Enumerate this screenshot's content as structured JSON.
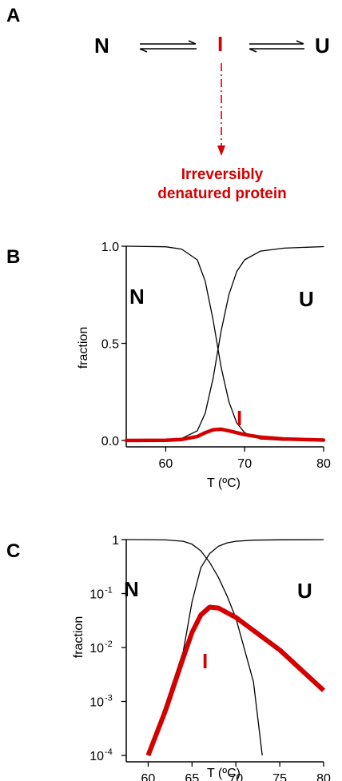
{
  "panels": {
    "A": {
      "letter": "A",
      "species_N": "N",
      "species_I": "I",
      "species_U": "U",
      "irreversible_line1": "Irreversibly",
      "irreversible_line2": "denatured protein",
      "colors": {
        "intermediate": "#d40000",
        "native_unfolded": "#000000"
      },
      "icons": [
        "equilibrium-arrows-icon",
        "dash-dot-arrow-icon"
      ]
    },
    "B": {
      "letter": "B",
      "label_N": "N",
      "label_U": "U",
      "label_I": "I",
      "ylabel": "fraction",
      "xlabel": "T (ºC)",
      "y_ticks": [
        "0.0",
        "0.5",
        "1.0"
      ],
      "x_ticks": [
        "60",
        "70",
        "80"
      ]
    },
    "C": {
      "letter": "C",
      "label_N": "N",
      "label_U": "U",
      "label_I": "I",
      "ylabel": "fraction",
      "xlabel": "T (ºC)",
      "y_tick_top": "1",
      "y_tick_base": "10",
      "y_tick_exps": [
        "-1",
        "-2",
        "-3",
        "-4"
      ],
      "x_ticks": [
        "60",
        "65",
        "70",
        "75",
        "80"
      ]
    }
  },
  "chart_data": [
    {
      "type": "line",
      "panel": "B",
      "xlim": [
        55,
        80
      ],
      "ylim": [
        0,
        1
      ],
      "log_y": false,
      "x": [
        55,
        60,
        62,
        64,
        65,
        66,
        67,
        68,
        69,
        70,
        72,
        75,
        80
      ],
      "series": [
        {
          "name": "N",
          "color": "#000000",
          "values": [
            1.0,
            0.997,
            0.985,
            0.93,
            0.82,
            0.62,
            0.38,
            0.2,
            0.09,
            0.04,
            0.008,
            0.001,
            0.0
          ]
        },
        {
          "name": "U",
          "color": "#000000",
          "values": [
            0.0,
            0.002,
            0.01,
            0.05,
            0.14,
            0.32,
            0.56,
            0.75,
            0.87,
            0.93,
            0.975,
            0.99,
            0.998
          ]
        },
        {
          "name": "I",
          "color": "#d40000",
          "values": [
            0.0,
            0.001,
            0.005,
            0.02,
            0.04,
            0.055,
            0.058,
            0.05,
            0.04,
            0.03,
            0.017,
            0.008,
            0.002
          ]
        }
      ]
    },
    {
      "type": "line",
      "panel": "C",
      "xlim": [
        57.5,
        80
      ],
      "ylim": [
        0.0001,
        1
      ],
      "log_y": true,
      "series": [
        {
          "name": "N",
          "color": "#000000",
          "x": [
            57.5,
            60,
            62,
            64,
            65,
            66,
            67,
            68,
            69,
            70,
            71,
            72,
            73
          ],
          "values": [
            1.0,
            0.998,
            0.985,
            0.93,
            0.82,
            0.62,
            0.38,
            0.2,
            0.09,
            0.035,
            0.009,
            0.0023,
            0.0001
          ]
        },
        {
          "name": "U",
          "color": "#000000",
          "x": [
            60,
            62,
            64,
            65,
            66,
            67,
            68,
            69,
            70,
            72,
            75,
            80
          ],
          "values": [
            0.0001,
            0.0009,
            0.0086,
            0.07,
            0.3,
            0.55,
            0.75,
            0.87,
            0.93,
            0.975,
            0.99,
            0.998
          ]
        },
        {
          "name": "I",
          "color": "#d40000",
          "x": [
            60,
            62,
            64,
            65,
            66,
            67,
            68,
            70,
            75,
            80
          ],
          "values": [
            0.0001,
            0.0007,
            0.0065,
            0.019,
            0.04,
            0.056,
            0.054,
            0.036,
            0.009,
            0.0016
          ]
        }
      ]
    }
  ]
}
